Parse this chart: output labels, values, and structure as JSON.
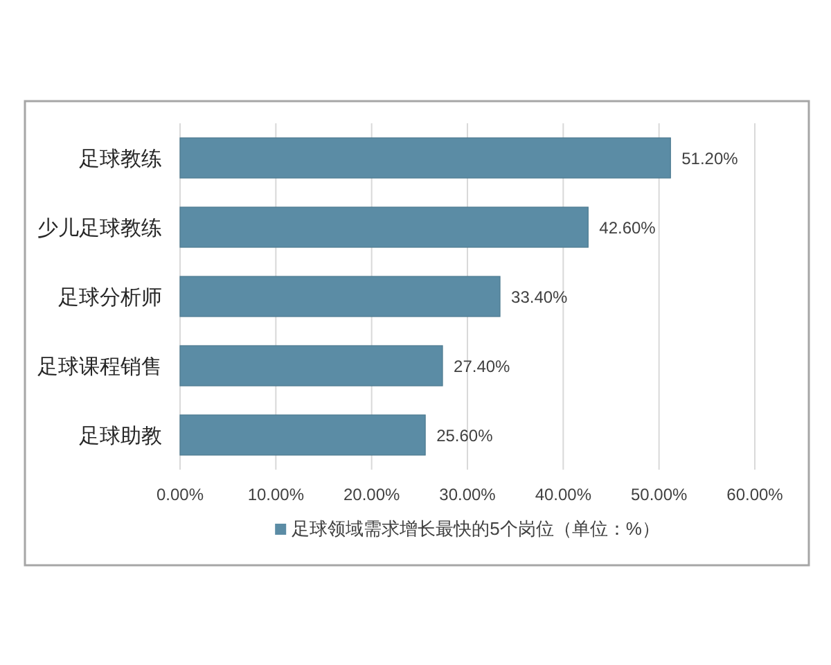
{
  "chart_data": {
    "type": "bar",
    "orientation": "horizontal",
    "categories": [
      "足球教练",
      "少儿足球教练",
      "足球分析师",
      "足球课程销售",
      "足球助教"
    ],
    "series": [
      {
        "name": "足球领域需求增长最快的5个岗位（单位：%）",
        "color": "#5b8ca5",
        "values": [
          51.2,
          42.6,
          33.4,
          27.4,
          25.6
        ],
        "value_labels": [
          "51.20%",
          "42.60%",
          "33.40%",
          "27.40%",
          "25.60%"
        ]
      }
    ],
    "xlim": [
      0,
      60
    ],
    "xticks": [
      {
        "value": 0,
        "label": "0.00%"
      },
      {
        "value": 10,
        "label": "10.00%"
      },
      {
        "value": 20,
        "label": "20.00%"
      },
      {
        "value": 30,
        "label": "30.00%"
      },
      {
        "value": 40,
        "label": "40.00%"
      },
      {
        "value": 50,
        "label": "50.00%"
      },
      {
        "value": 60,
        "label": "60.00%"
      }
    ],
    "grid": "x",
    "legend": "bottom"
  }
}
